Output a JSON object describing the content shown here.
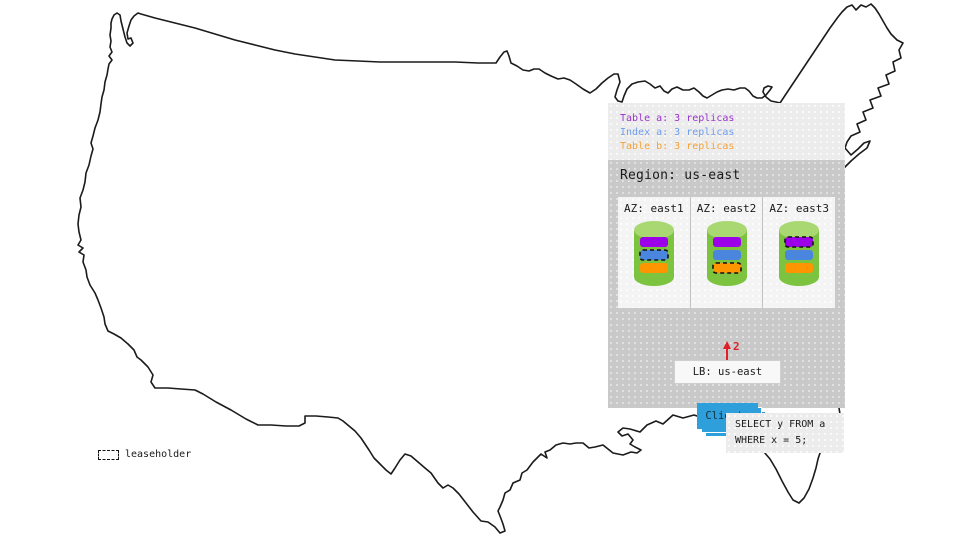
{
  "legend": {
    "items": [
      {
        "name": "table-a",
        "label": "Table a: 3 replicas",
        "color": "#9933cc"
      },
      {
        "name": "index-a",
        "label": "Index a: 3 replicas",
        "color": "#6d9ceb"
      },
      {
        "name": "table-b",
        "label": "Table b: 3 replicas",
        "color": "#f5a033"
      }
    ]
  },
  "region": {
    "title": "Region: us-east",
    "azs": [
      {
        "label": "AZ: east1",
        "replicas": [
          {
            "name": "table-a",
            "color": "#9c00e8",
            "leaseholder": false
          },
          {
            "name": "index-a",
            "color": "#4a86dd",
            "leaseholder": true
          },
          {
            "name": "table-b",
            "color": "#ff9500",
            "leaseholder": false
          }
        ]
      },
      {
        "label": "AZ: east2",
        "replicas": [
          {
            "name": "table-a",
            "color": "#9c00e8",
            "leaseholder": false
          },
          {
            "name": "index-a",
            "color": "#4a86dd",
            "leaseholder": false
          },
          {
            "name": "table-b",
            "color": "#ff9500",
            "leaseholder": true
          }
        ]
      },
      {
        "label": "AZ: east3",
        "replicas": [
          {
            "name": "table-a",
            "color": "#9c00e8",
            "leaseholder": true
          },
          {
            "name": "index-a",
            "color": "#4a86dd",
            "leaseholder": false
          },
          {
            "name": "table-b",
            "color": "#ff9500",
            "leaseholder": false
          }
        ]
      }
    ],
    "load_balancer": {
      "label": "LB: us-east"
    },
    "arrow": {
      "label": "2",
      "color": "#e01f28"
    },
    "clients": {
      "label": "Clients",
      "color": "#2f9fdc"
    }
  },
  "query": {
    "lines": [
      "SELECT y FROM a",
      "WHERE x = 5;"
    ]
  },
  "map_key": {
    "leaseholder_label": "leaseholder"
  },
  "cylinder": {
    "body_color": "#7cc340",
    "top_color": "#a9d873"
  }
}
